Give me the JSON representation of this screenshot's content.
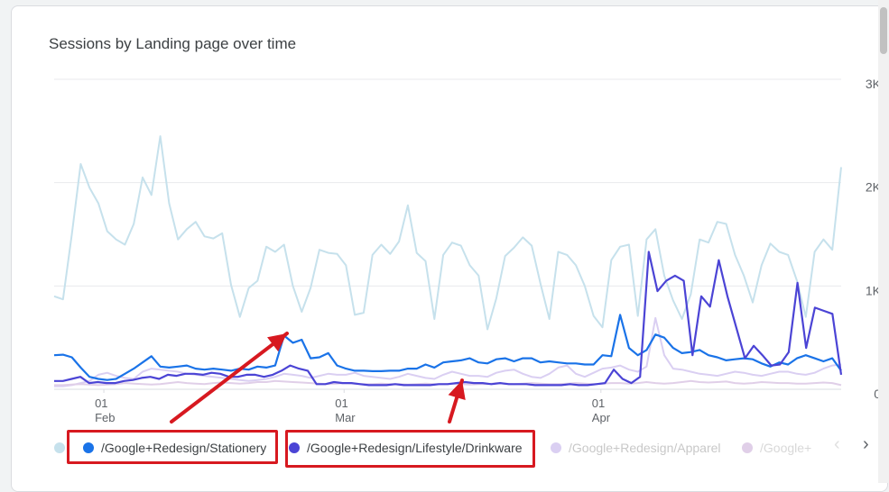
{
  "card": {
    "title": "Sessions by Landing page over time"
  },
  "chart_data": {
    "type": "line",
    "title": "Sessions by Landing page over time",
    "y_tick_labels": [
      "3K",
      "2K",
      "1K",
      "0"
    ],
    "y_ticks": [
      3000,
      2000,
      1000,
      0
    ],
    "ylim": [
      0,
      3000
    ],
    "x_tick_labels": [
      {
        "day": "01",
        "month": "Feb",
        "date": "2024-02-01"
      },
      {
        "day": "01",
        "month": "Mar",
        "date": "2024-03-01"
      },
      {
        "day": "01",
        "month": "Apr",
        "date": "2024-04-01"
      }
    ],
    "x_start": "2024-01-26",
    "x_end": "2024-04-30",
    "grid": true,
    "legend_position": "bottom",
    "series": [
      {
        "name": "(first series, label cut off)",
        "color": "#c6e1ec",
        "values": [
          900,
          870,
          1500,
          2180,
          1950,
          1800,
          1530,
          1450,
          1400,
          1600,
          2050,
          1880,
          2450,
          1800,
          1450,
          1550,
          1620,
          1480,
          1460,
          1510,
          1010,
          700,
          980,
          1050,
          1380,
          1330,
          1400,
          1000,
          750,
          980,
          1350,
          1320,
          1310,
          1200,
          720,
          740,
          1300,
          1400,
          1310,
          1430,
          1780,
          1320,
          1240,
          680,
          1300,
          1420,
          1390,
          1200,
          1100,
          580,
          880,
          1290,
          1370,
          1470,
          1390,
          1020,
          680,
          1330,
          1300,
          1200,
          1000,
          710,
          600,
          1250,
          1380,
          1400,
          710,
          1450,
          1550,
          1100,
          860,
          680,
          920,
          1450,
          1420,
          1620,
          1600,
          1300,
          1100,
          840,
          1200,
          1410,
          1330,
          1300,
          1050,
          700,
          1330,
          1450,
          1350,
          2150
        ]
      },
      {
        "name": "/Google+Redesign/Stationery",
        "color": "#1a73e8",
        "values": [
          330,
          335,
          310,
          210,
          120,
          100,
          90,
          100,
          150,
          200,
          260,
          320,
          220,
          210,
          220,
          230,
          200,
          190,
          200,
          190,
          180,
          200,
          190,
          220,
          210,
          230,
          520,
          450,
          480,
          300,
          310,
          350,
          230,
          200,
          180,
          180,
          175,
          175,
          180,
          180,
          200,
          200,
          240,
          210,
          260,
          270,
          280,
          300,
          260,
          250,
          290,
          300,
          270,
          300,
          300,
          260,
          270,
          260,
          250,
          250,
          240,
          240,
          330,
          320,
          720,
          400,
          330,
          380,
          530,
          500,
          400,
          350,
          360,
          380,
          330,
          310,
          280,
          290,
          300,
          290,
          250,
          220,
          260,
          240,
          300,
          330,
          300,
          270,
          300,
          180
        ]
      },
      {
        "name": "/Google+Redesign/Lifestyle/Drinkware",
        "color": "#4b44d5",
        "values": [
          80,
          80,
          100,
          120,
          60,
          70,
          60,
          60,
          80,
          90,
          110,
          120,
          100,
          140,
          130,
          150,
          150,
          140,
          160,
          150,
          120,
          120,
          140,
          140,
          120,
          140,
          180,
          230,
          200,
          180,
          50,
          50,
          70,
          60,
          60,
          50,
          40,
          40,
          40,
          50,
          40,
          40,
          40,
          40,
          50,
          50,
          60,
          70,
          60,
          60,
          50,
          60,
          50,
          50,
          50,
          40,
          40,
          40,
          40,
          50,
          40,
          40,
          50,
          60,
          190,
          100,
          60,
          120,
          1330,
          950,
          1050,
          1100,
          1050,
          330,
          900,
          800,
          1250,
          900,
          600,
          300,
          420,
          330,
          230,
          240,
          360,
          1030,
          400,
          790,
          760,
          730,
          140
        ]
      },
      {
        "name": "/Google+Redesign/Apparel",
        "color": "#dacff2",
        "values": [
          30,
          30,
          40,
          60,
          80,
          140,
          160,
          130,
          110,
          100,
          170,
          200,
          190,
          180,
          170,
          150,
          140,
          130,
          120,
          110,
          100,
          90,
          80,
          90,
          100,
          120,
          150,
          140,
          130,
          110,
          130,
          150,
          140,
          140,
          160,
          130,
          120,
          110,
          100,
          120,
          150,
          130,
          110,
          100,
          140,
          170,
          150,
          130,
          130,
          120,
          160,
          180,
          190,
          150,
          120,
          110,
          150,
          210,
          230,
          150,
          120,
          160,
          200,
          210,
          230,
          190,
          170,
          220,
          690,
          330,
          200,
          190,
          170,
          150,
          140,
          130,
          150,
          170,
          160,
          140,
          130,
          150,
          170,
          170,
          150,
          140,
          160,
          200,
          230,
          240
        ]
      },
      {
        "name": "/Google+",
        "color": "#e0cfe8",
        "values": [
          40,
          40,
          45,
          50,
          45,
          40,
          45,
          50,
          60,
          55,
          50,
          45,
          50,
          60,
          70,
          60,
          55,
          50,
          60,
          65,
          60,
          55,
          60,
          70,
          70,
          80,
          75,
          70,
          65,
          60,
          55,
          50,
          55,
          60,
          55,
          50,
          50,
          55,
          50,
          50,
          45,
          50,
          55,
          50,
          50,
          55,
          50,
          45,
          50,
          50,
          60,
          55,
          50,
          55,
          60,
          55,
          50,
          50,
          55,
          60,
          55,
          50,
          55,
          60,
          60,
          55,
          60,
          70,
          60,
          55,
          60,
          70,
          80,
          70,
          65,
          70,
          75,
          60,
          55,
          60,
          70,
          65,
          60,
          60,
          55,
          55,
          60,
          65,
          60,
          40
        ]
      }
    ]
  },
  "legend": {
    "items": [
      {
        "label": "",
        "color": "#c6e1ec"
      },
      {
        "label": "/Google+Redesign/Stationery",
        "color": "#1a73e8"
      },
      {
        "label": "/Google+Redesign/Lifestyle/Drinkware",
        "color": "#4b44d5"
      },
      {
        "label": "/Google+Redesign/Apparel",
        "color": "#dacff2"
      },
      {
        "label": "/Google+",
        "color": "#e0cfe8"
      }
    ],
    "prev_icon": "chevron-left-icon",
    "next_icon": "chevron-right-icon"
  },
  "annotations": {
    "arrow_color": "#d71920",
    "highlight_color": "#d71920"
  }
}
